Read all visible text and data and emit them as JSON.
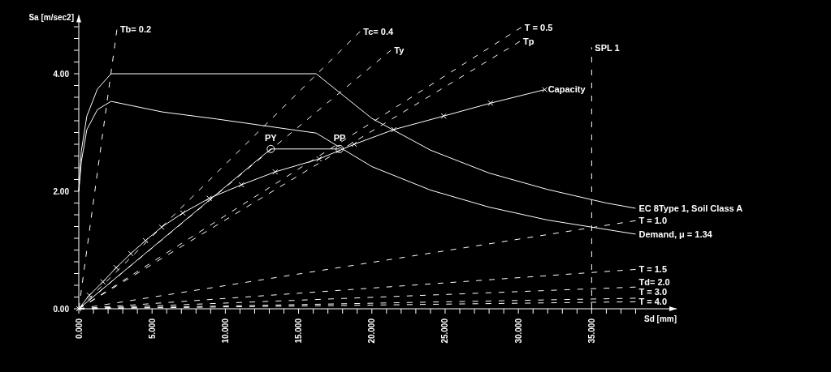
{
  "chart_data": {
    "type": "line",
    "xlabel": "Sd [mm]",
    "ylabel": "Sa [m/sec2]",
    "xlim": [
      0,
      40.8
    ],
    "ylim": [
      0,
      5
    ],
    "xticks": [
      {
        "value": 0,
        "label": "0.000"
      },
      {
        "value": 1,
        "label": null
      },
      {
        "value": 2,
        "label": null
      },
      {
        "value": 3,
        "label": null
      },
      {
        "value": 4,
        "label": null
      },
      {
        "value": 5,
        "label": "5.000"
      },
      {
        "value": 6,
        "label": null
      },
      {
        "value": 7,
        "label": null
      },
      {
        "value": 8,
        "label": null
      },
      {
        "value": 9,
        "label": null
      },
      {
        "value": 10,
        "label": "10.000"
      },
      {
        "value": 11,
        "label": null
      },
      {
        "value": 12,
        "label": null
      },
      {
        "value": 13,
        "label": null
      },
      {
        "value": 14,
        "label": null
      },
      {
        "value": 15,
        "label": "15.000"
      },
      {
        "value": 16,
        "label": null
      },
      {
        "value": 17,
        "label": null
      },
      {
        "value": 18,
        "label": null
      },
      {
        "value": 19,
        "label": null
      },
      {
        "value": 20,
        "label": "20.000"
      },
      {
        "value": 21,
        "label": null
      },
      {
        "value": 22,
        "label": null
      },
      {
        "value": 23,
        "label": null
      },
      {
        "value": 24,
        "label": null
      },
      {
        "value": 25,
        "label": "25.000"
      },
      {
        "value": 26,
        "label": null
      },
      {
        "value": 27,
        "label": null
      },
      {
        "value": 28,
        "label": null
      },
      {
        "value": 29,
        "label": null
      },
      {
        "value": 30,
        "label": "30.000"
      },
      {
        "value": 31,
        "label": null
      },
      {
        "value": 32,
        "label": null
      },
      {
        "value": 33,
        "label": null
      },
      {
        "value": 34,
        "label": null
      },
      {
        "value": 35,
        "label": "35.000"
      },
      {
        "value": 36,
        "label": null
      },
      {
        "value": 37,
        "label": null
      },
      {
        "value": 38,
        "label": null
      }
    ],
    "yticks": [
      {
        "value": 0,
        "label": "0.00"
      },
      {
        "value": 0.2,
        "label": null
      },
      {
        "value": 0.4,
        "label": null
      },
      {
        "value": 0.6,
        "label": null
      },
      {
        "value": 0.8,
        "label": null
      },
      {
        "value": 1,
        "label": null
      },
      {
        "value": 1.2,
        "label": null
      },
      {
        "value": 1.4,
        "label": null
      },
      {
        "value": 1.6,
        "label": null
      },
      {
        "value": 1.8,
        "label": null
      },
      {
        "value": 2,
        "label": "2.00"
      },
      {
        "value": 2.2,
        "label": null
      },
      {
        "value": 2.4,
        "label": null
      },
      {
        "value": 2.6,
        "label": null
      },
      {
        "value": 2.8,
        "label": null
      },
      {
        "value": 3,
        "label": null
      },
      {
        "value": 3.2,
        "label": null
      },
      {
        "value": 3.4,
        "label": null
      },
      {
        "value": 3.6,
        "label": null
      },
      {
        "value": 3.8,
        "label": null
      },
      {
        "value": 4,
        "label": "4.00"
      },
      {
        "value": 4.2,
        "label": null
      },
      {
        "value": 4.4,
        "label": null
      },
      {
        "value": 4.6,
        "label": null
      },
      {
        "value": 4.8,
        "label": null
      }
    ],
    "grid": false,
    "series": [
      {
        "name": "EC 8Type 1, Soil Class A",
        "color": "#ffffff",
        "line_style": "solid",
        "marker": "none",
        "x": [
          0,
          0.17,
          0.55,
          1.27,
          2.2,
          16.2,
          20,
          24,
          28,
          32,
          36,
          38
        ],
        "values": [
          2.0,
          2.68,
          3.28,
          3.74,
          4.0,
          4.0,
          3.24,
          2.7,
          2.31,
          2.03,
          1.8,
          1.71
        ]
      },
      {
        "name": "Demand,   μ =  1.34",
        "color": "#ffffff",
        "line_style": "solid",
        "marker": "none",
        "x": [
          0,
          0.17,
          0.55,
          1.27,
          2.2,
          5.7,
          9.4,
          16.2,
          20,
          24,
          28,
          32,
          38
        ],
        "values": [
          2.0,
          2.5,
          3.05,
          3.39,
          3.53,
          3.35,
          3.23,
          2.99,
          2.42,
          2.02,
          1.73,
          1.51,
          1.27
        ]
      },
      {
        "name": "Capacity",
        "color": "#ffffff",
        "line_style": "solid",
        "marker": "cross",
        "x": [
          0,
          0.72,
          1.65,
          2.55,
          3.55,
          4.55,
          5.65,
          7.1,
          8.9,
          11.1,
          13.4,
          16.4,
          18.8,
          21.5,
          24.9,
          28.1,
          31.8
        ],
        "values": [
          0,
          0.23,
          0.46,
          0.7,
          0.94,
          1.16,
          1.39,
          1.63,
          1.88,
          2.11,
          2.33,
          2.55,
          2.8,
          3.05,
          3.28,
          3.5,
          3.73
        ]
      },
      {
        "color": "#ffffff",
        "line_style": "solid",
        "marker": "none",
        "x": [
          0,
          13.1,
          17.8
        ],
        "values": [
          0,
          2.72,
          2.72
        ]
      },
      {
        "type": "scatter",
        "color": "#ffffff",
        "marker": "circle",
        "x": [
          13.1,
          17.8
        ],
        "values": [
          2.72,
          2.72
        ]
      },
      {
        "name": "Tb= 0.2",
        "color": "#ffffff",
        "line_style": "dashed",
        "marker": "none",
        "x": [
          0,
          2.6
        ],
        "values": [
          0,
          4.75
        ]
      },
      {
        "name": "Tc= 0.4",
        "color": "#ffffff",
        "line_style": "dashed",
        "marker": "none",
        "x": [
          0,
          19.2
        ],
        "values": [
          0,
          4.72
        ]
      },
      {
        "name": "Ty",
        "color": "#ffffff",
        "line_style": "dashed",
        "marker": "none",
        "x": [
          0,
          21.3
        ],
        "values": [
          0,
          4.4
        ]
      },
      {
        "name": "T = 0.5",
        "color": "#ffffff",
        "line_style": "dashed",
        "marker": "none",
        "x": [
          0,
          30.2
        ],
        "values": [
          0,
          4.79
        ]
      },
      {
        "name": "Tp",
        "color": "#ffffff",
        "line_style": "dashed",
        "marker": "none",
        "x": [
          0,
          30.1
        ],
        "values": [
          0,
          4.55
        ]
      },
      {
        "name": "T = 1.0",
        "color": "#ffffff",
        "line_style": "dashed",
        "marker": "none",
        "x": [
          0,
          38
        ],
        "values": [
          0,
          1.5
        ]
      },
      {
        "name": "T = 1.5",
        "color": "#ffffff",
        "line_style": "dashed",
        "marker": "none",
        "x": [
          0,
          38
        ],
        "values": [
          0,
          0.67
        ]
      },
      {
        "name": "Td= 2.0",
        "color": "#ffffff",
        "line_style": "dashed",
        "marker": "none",
        "x": [
          0,
          38
        ],
        "values": [
          0,
          0.37
        ]
      },
      {
        "name": "T = 3.0",
        "color": "#ffffff",
        "line_style": "dashed",
        "marker": "none",
        "x": [
          0,
          38
        ],
        "values": [
          0,
          0.18
        ]
      },
      {
        "name": "T = 4.0",
        "color": "#ffffff",
        "line_style": "dashed",
        "marker": "none",
        "x": [
          0,
          38
        ],
        "values": [
          0,
          0.12
        ]
      }
    ],
    "ref_lines": [
      {
        "axis": "x",
        "value": 35,
        "label": "SPL 1",
        "color": "#ffffff",
        "line_style": "dashed"
      }
    ],
    "annotations": [
      {
        "text": "PY",
        "x": 13.1,
        "y": 2.72
      },
      {
        "text": "PP",
        "x": 17.8,
        "y": 2.72
      }
    ]
  }
}
